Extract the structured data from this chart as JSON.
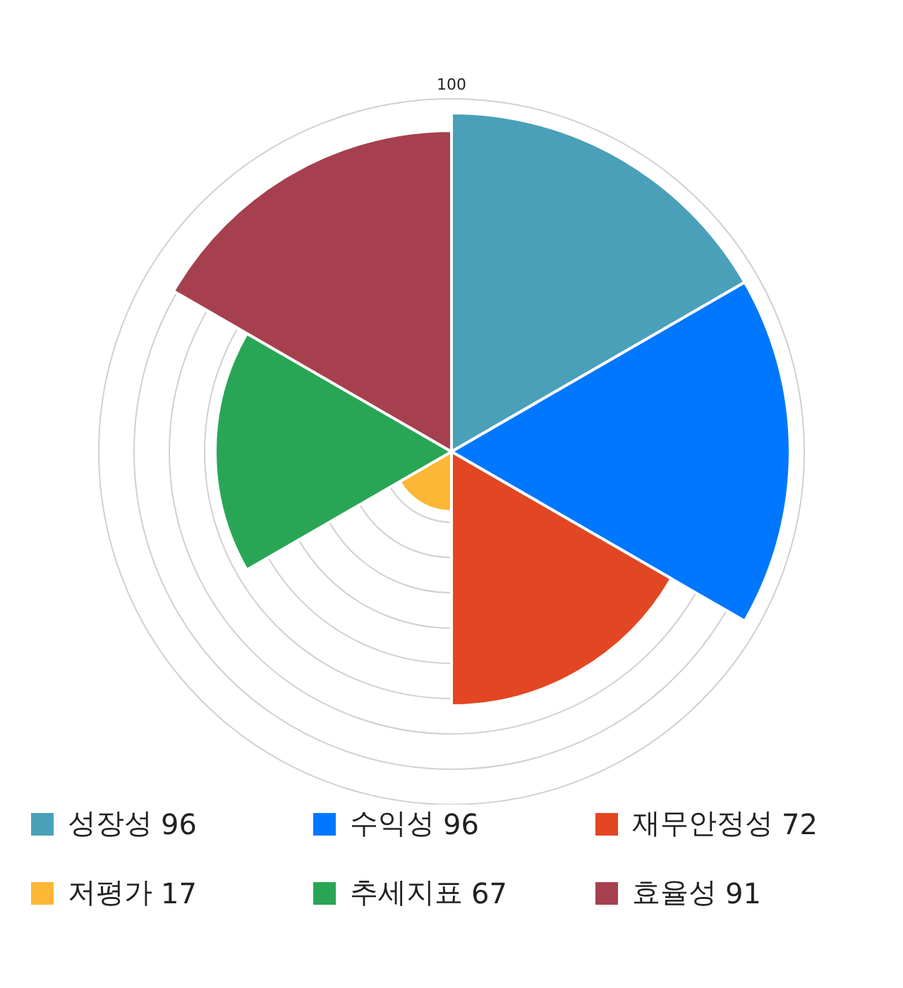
{
  "chart_data": {
    "type": "other",
    "categories": [
      "성장성",
      "수익성",
      "재무안정성",
      "저평가",
      "추세지표",
      "효율성"
    ],
    "values": [
      96,
      96,
      72,
      17,
      67,
      91
    ],
    "value_labels": [
      "96",
      "96",
      "72",
      "17",
      "67",
      "91"
    ],
    "colors": [
      "#4aa0b9",
      "#0077ff",
      "#e34622",
      "#fbb735",
      "#28a655",
      "#a6404e"
    ],
    "annotations": [
      "100"
    ]
  }
}
